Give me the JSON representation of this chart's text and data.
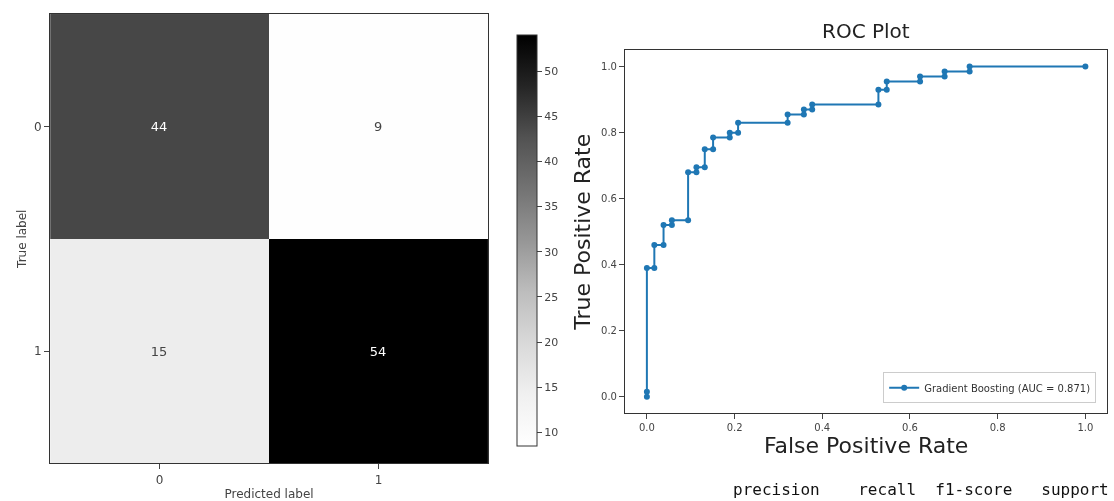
{
  "chart_data": [
    {
      "type": "heatmap",
      "categories": [
        "0",
        "1"
      ],
      "y_categories": [
        "0",
        "1"
      ],
      "xlabel": "Predicted label",
      "ylabel": "True label",
      "cells": [
        [
          44,
          9
        ],
        [
          15,
          54
        ]
      ],
      "clim": [
        8.5,
        54
      ],
      "cticks": [
        10,
        15,
        20,
        25,
        30,
        35,
        40,
        45,
        50
      ],
      "data_labels": true
    },
    {
      "type": "line",
      "title": "ROC Plot",
      "xlabel": "False Positive Rate",
      "ylabel": "True Positive Rate",
      "legend": "bottom right",
      "marker": "circle",
      "line_style": "solid",
      "xlim": [
        -0.05,
        1.05
      ],
      "ylim": [
        -0.05,
        1.05
      ],
      "xticks": [
        {
          "value": 0,
          "label": "0.0"
        },
        {
          "value": 0.2,
          "label": "0.2"
        },
        {
          "value": 0.4,
          "label": "0.4"
        },
        {
          "value": 0.6,
          "label": "0.6"
        },
        {
          "value": 0.8,
          "label": "0.8"
        },
        {
          "value": 1,
          "label": "1.0"
        }
      ],
      "yticks": [
        {
          "value": 0,
          "label": "0.0"
        },
        {
          "value": 0.2,
          "label": "0.2"
        },
        {
          "value": 0.4,
          "label": "0.4"
        },
        {
          "value": 0.6,
          "label": "0.6"
        },
        {
          "value": 0.8,
          "label": "0.8"
        },
        {
          "value": 1,
          "label": "1.0"
        }
      ],
      "series": [
        {
          "name": "Gradient Boosting (AUC = 0.871)",
          "color": "#1f77b4",
          "x": [
            0,
            0,
            0,
            0.017,
            0.017,
            0.038,
            0.038,
            0.057,
            0.057,
            0.094,
            0.094,
            0.113,
            0.113,
            0.132,
            0.132,
            0.151,
            0.151,
            0.189,
            0.189,
            0.208,
            0.208,
            0.321,
            0.321,
            0.358,
            0.358,
            0.377,
            0.377,
            0.528,
            0.528,
            0.547,
            0.547,
            0.623,
            0.623,
            0.679,
            0.679,
            0.736,
            0.736,
            1.0
          ],
          "values": [
            0,
            0.015,
            0.39,
            0.39,
            0.46,
            0.46,
            0.52,
            0.52,
            0.535,
            0.535,
            0.68,
            0.68,
            0.695,
            0.695,
            0.75,
            0.75,
            0.785,
            0.785,
            0.8,
            0.8,
            0.83,
            0.83,
            0.855,
            0.855,
            0.87,
            0.87,
            0.885,
            0.885,
            0.93,
            0.93,
            0.955,
            0.955,
            0.97,
            0.97,
            0.985,
            0.985,
            1.0,
            1.0
          ]
        }
      ]
    },
    {
      "type": "other",
      "annotations": [
        "precision    recall  f1-score   support"
      ]
    }
  ]
}
